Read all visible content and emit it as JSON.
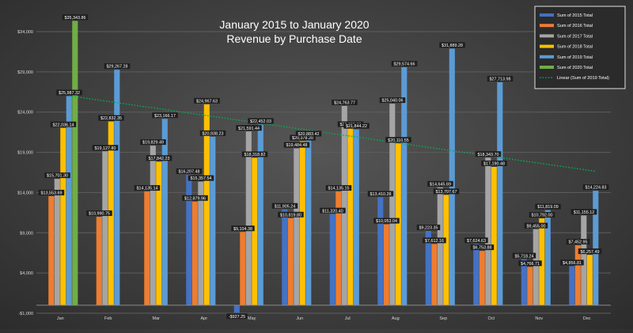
{
  "chart_data": {
    "type": "bar",
    "title": "January 2015 to January 2020",
    "subtitle": "Revenue by Purchase Date",
    "xlabel": "",
    "ylabel": "",
    "categories": [
      "Jan",
      "Feb",
      "Mar",
      "Apr",
      "May",
      "Jun",
      "Jul",
      "Aug",
      "Sep",
      "Oct",
      "Nov",
      "Dec"
    ],
    "ylim": [
      -1000,
      36000
    ],
    "y_ticks": [
      -1000,
      4000,
      9000,
      14000,
      19000,
      24000,
      29000,
      34000
    ],
    "y_tick_labels": [
      "-$1,000",
      "$4,000",
      "$9,000",
      "$14,000",
      "$19,000",
      "$24,000",
      "$29,000",
      "$34,000"
    ],
    "grid": true,
    "legend_position": "top-right",
    "series": [
      {
        "name": "Sum of 2015 Total",
        "color": "#4472c4",
        "values": [
          null,
          null,
          null,
          16207.48,
          -927.25,
          11905.24,
          11320.4,
          13410.28,
          9223.35,
          7624.63,
          5718.24,
          4856.81
        ],
        "labels": [
          null,
          null,
          null,
          "$16,207.48",
          "-$927.25",
          "$11,905.24",
          "$11,320.40",
          "$13,410.28",
          "$9,223.35",
          "$7,624.63",
          "$5,718.24",
          "$4,856.81"
        ]
      },
      {
        "name": "Sum of 2016 Total",
        "color": "#ed7d31",
        "values": [
          13553.69,
          10990.75,
          14135.14,
          12879.96,
          9104.38,
          10819.8,
          14135.15,
          10053.04,
          7612.16,
          6753.88,
          4766.71,
          7452.95
        ],
        "labels": [
          "$13,553.69",
          "$10,990.75",
          "$14,135.14",
          "$12,879.96",
          "$9,104.38",
          "$10,819.80",
          "$14,135.15",
          "$10,053.04",
          "$7,612.16",
          "$6,753.88",
          "$4,766.71",
          "$7,452.95"
        ]
      },
      {
        "name": "Sum of 2017 Total",
        "color": "#a5a5a5",
        "values": [
          15701.3,
          19127.8,
          19829.49,
          15357.54,
          21591.44,
          19484.48,
          24763.77,
          25040.06,
          14645.69,
          18343.7,
          9455.0,
          11155.12
        ],
        "labels": [
          "$15,701.30",
          "$19,127.80",
          "$19,829.49",
          "$15,357.54",
          "$21,591.44",
          "$19,484.48",
          "$24,763.77",
          "$25,040.06",
          "$14,645.69",
          "$18,343.70",
          "$9,455.00",
          "$11,155.12"
        ]
      },
      {
        "name": "Sum of 2018 Total",
        "color": "#ffc000",
        "values": [
          22036.14,
          22832.35,
          17842.23,
          24967.63,
          18318.82,
          20378.2,
          22055.38,
          20110.55,
          13707.67,
          17190.48,
          10792.0,
          6257.49
        ],
        "labels": [
          "$22,036.14",
          "$22,832.35",
          "$17,842.23",
          "$24,967.63",
          "$18,318.82",
          "$20,378.20",
          "$22,055.38",
          "$20,110.55",
          "$13,707.67",
          "$17,190.48",
          "$10,792.00",
          "$6,257.49"
        ]
      },
      {
        "name": "Sum of 2019 Total",
        "color": "#5b9bd5",
        "values": [
          25987.32,
          29267.28,
          23166.17,
          20938.23,
          22452.03,
          20883.42,
          21844.22,
          29574.66,
          31889.28,
          27713.98,
          11819.09,
          14224.83
        ],
        "labels": [
          "$25,987.32",
          "$29,267.28",
          "$23,166.17",
          "$20,938.23",
          "$22,452.03",
          "$20,883.42",
          "$21,844.22",
          "$29,574.66",
          "$31,889.28",
          "$27,713.98",
          "$11,819.09",
          "$14,224.83"
        ]
      },
      {
        "name": "Sum of 2020 Total",
        "color": "#70ad47",
        "values": [
          35343.86,
          null,
          null,
          null,
          null,
          null,
          null,
          null,
          null,
          null,
          null,
          null
        ],
        "labels": [
          "$35,343.86",
          null,
          null,
          null,
          null,
          null,
          null,
          null,
          null,
          null,
          null,
          null
        ]
      }
    ],
    "trendline": {
      "name": "Linear (Sum of 2019 Total)",
      "color": "#00b050",
      "style": "dotted",
      "values": [
        26020,
        16640
      ]
    }
  }
}
